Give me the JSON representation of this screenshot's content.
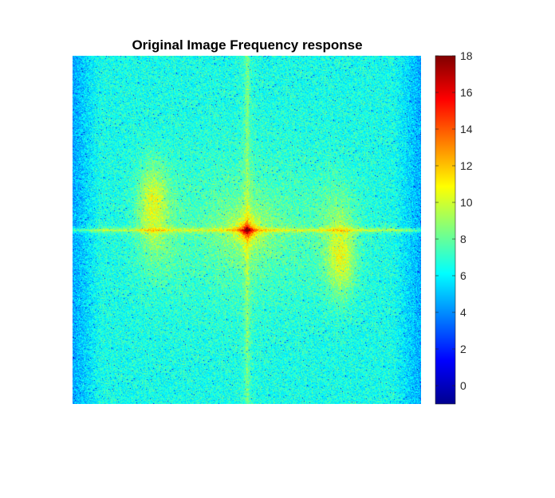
{
  "chart_data": {
    "type": "heatmap",
    "title": "Original Image Frequency response",
    "colormap": "jet",
    "colorbar": {
      "range": [
        -1,
        18
      ],
      "ticks": [
        0,
        2,
        4,
        6,
        8,
        10,
        12,
        14,
        16,
        18
      ],
      "tick_labels": [
        "0",
        "2",
        "4",
        "6",
        "8",
        "10",
        "12",
        "14",
        "16",
        "18"
      ],
      "placement": "right"
    },
    "axes_visible": false,
    "grid": false,
    "features": {
      "background_level": 6.5,
      "edge_level": 4.5,
      "center_peak_level": 17,
      "horizontal_line_level": 10,
      "vertical_line_level": 8.5,
      "side_lobe_level": 10
    }
  }
}
